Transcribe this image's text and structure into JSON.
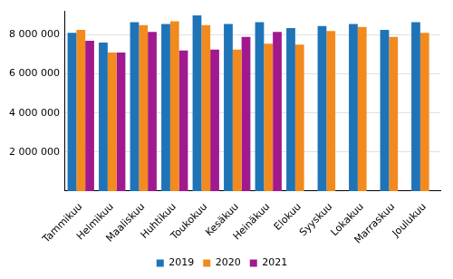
{
  "chart_data": {
    "type": "bar",
    "categories": [
      "Tammikuu",
      "Helmikuu",
      "Maaliskuu",
      "Huhtikuu",
      "Toukokuu",
      "Kesäkuu",
      "Heinäkuu",
      "Elokuu",
      "Syyskuu",
      "Lokakuu",
      "Marraskuu",
      "Joulukuu"
    ],
    "series": [
      {
        "name": "2019",
        "color": "#1f73b7",
        "values": [
          8100000,
          7600000,
          8650000,
          8550000,
          9000000,
          8550000,
          8650000,
          8350000,
          8450000,
          8550000,
          8250000,
          8650000
        ]
      },
      {
        "name": "2020",
        "color": "#f28a1e",
        "values": [
          8250000,
          7100000,
          8500000,
          8700000,
          8500000,
          7250000,
          7550000,
          7500000,
          8200000,
          8400000,
          7900000,
          8100000
        ]
      },
      {
        "name": "2021",
        "color": "#a0198f",
        "values": [
          7700000,
          7100000,
          8150000,
          7200000,
          7250000,
          7900000,
          8150000,
          null,
          null,
          null,
          null,
          null
        ]
      }
    ],
    "ylim": [
      0,
      9200000
    ],
    "yticks": [
      {
        "value": 2000000,
        "label": "2 000 000"
      },
      {
        "value": 4000000,
        "label": "4 000 000"
      },
      {
        "value": 6000000,
        "label": "6 000 000"
      },
      {
        "value": 8000000,
        "label": "8 000 000"
      }
    ],
    "grid": true,
    "legend": "bottom"
  }
}
